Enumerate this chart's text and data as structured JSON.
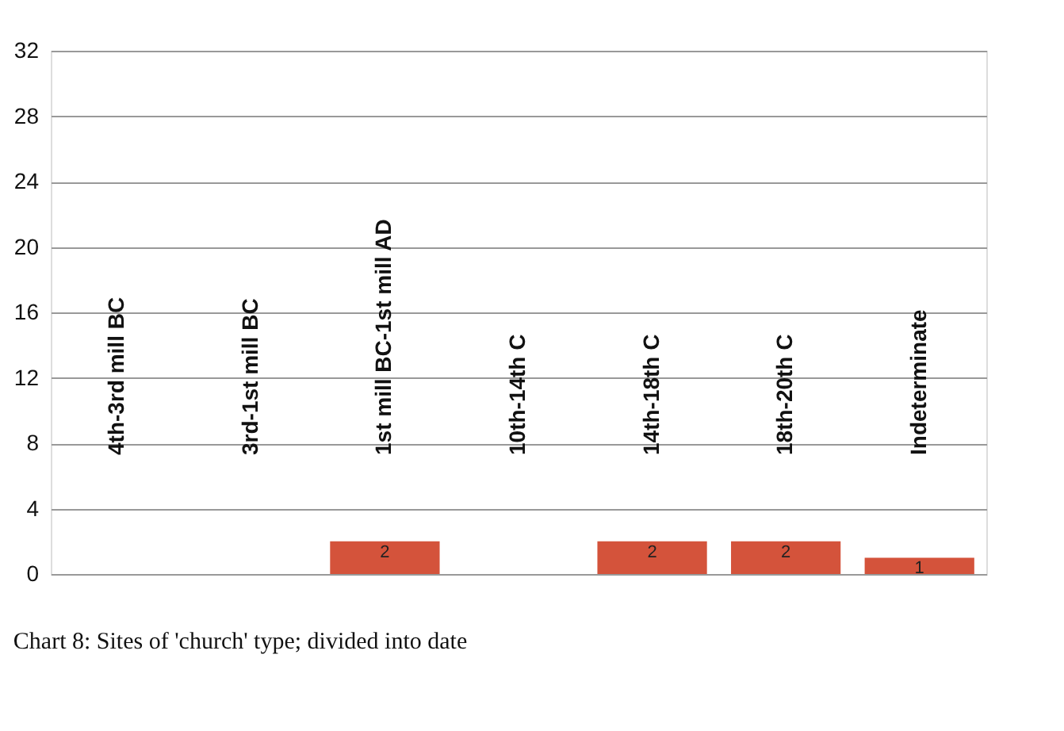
{
  "chart_data": {
    "type": "bar",
    "categories": [
      "4th-3rd mill BC",
      "3rd-1st mill BC",
      "1st mill BC-1st mill AD",
      "10th-14th C",
      "14th-18th C",
      "18th-20th C",
      "Indeterminate"
    ],
    "values": [
      0,
      0,
      2,
      0,
      2,
      2,
      1
    ],
    "value_labels": [
      null,
      null,
      "2",
      null,
      "2",
      "2",
      "1"
    ],
    "color": "#d4533b",
    "ylim": [
      0,
      32
    ],
    "yticks": [
      0,
      4,
      8,
      12,
      16,
      20,
      24,
      28,
      32
    ],
    "grid": "y",
    "annotations": [
      "Chart 8: Sites of 'church' type; divided into date"
    ]
  }
}
